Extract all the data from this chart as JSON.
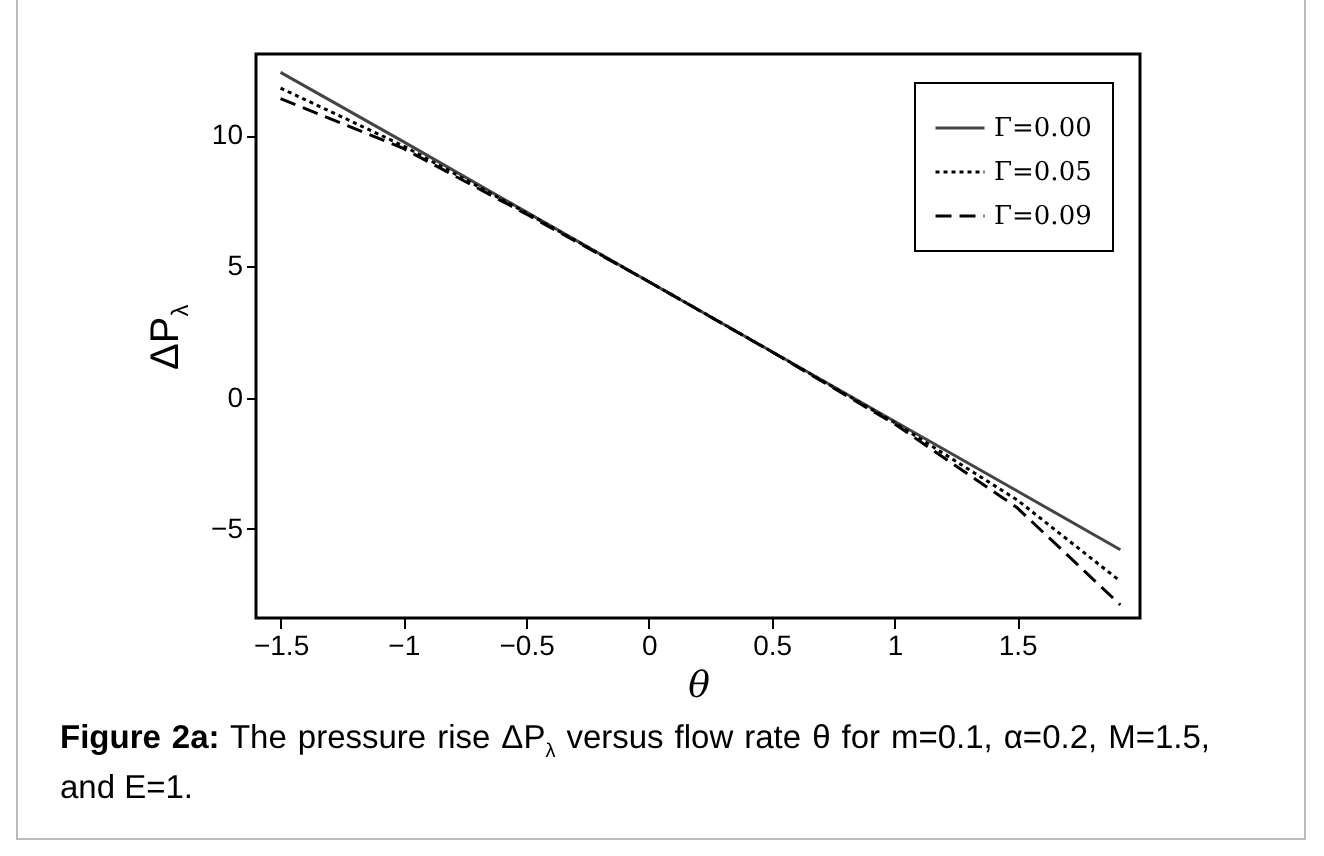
{
  "chart_data": {
    "type": "line",
    "xlabel": "θ",
    "ylabel": "ΔP$_{λ}$",
    "x": [
      -1.5,
      -1,
      -0.5,
      0,
      0.5,
      1,
      1.5,
      1.92
    ],
    "series": [
      {
        "name": "Γ=0.00",
        "color": "#444444",
        "line_style": "solid",
        "values": [
          12.4,
          9.76,
          7.08,
          4.42,
          1.76,
          -0.9,
          -3.56,
          -5.8
        ]
      },
      {
        "name": "Γ=0.05",
        "color": "#000000",
        "line_style": "dotted",
        "values": [
          11.8,
          9.6,
          7.05,
          4.42,
          1.76,
          -0.95,
          -3.9,
          -7.0
        ]
      },
      {
        "name": "Γ=0.09",
        "color": "#000000",
        "line_style": "dashed",
        "values": [
          11.4,
          9.5,
          7.0,
          4.42,
          1.75,
          -1.0,
          -4.2,
          -7.9
        ]
      }
    ],
    "xlim": [
      -1.6,
      2.0
    ],
    "xticks": [
      -1.5,
      -1,
      -0.5,
      0,
      0.5,
      1,
      1.5
    ],
    "ylim": [
      -8.4,
      13.1
    ],
    "yticks": [
      -5,
      0,
      5,
      10
    ],
    "grid": false,
    "legend": "top right",
    "marker": "none",
    "annotations": [
      "Figure 2a: The pressure rise ΔP$_{λ}$ versus flow rate θ for m=0.1, α=0.2, M=1.5, and E=1."
    ]
  }
}
